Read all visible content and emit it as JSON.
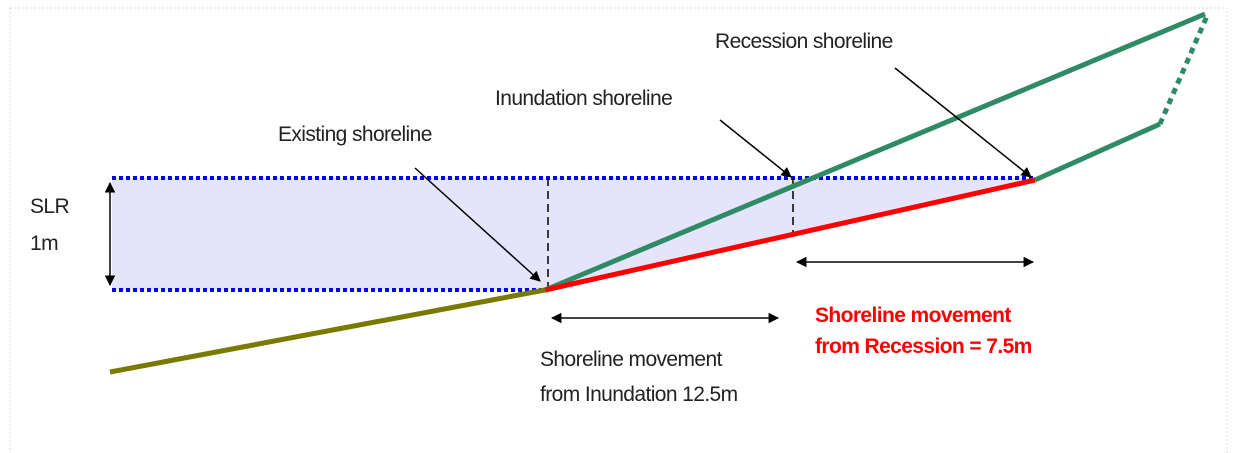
{
  "slr": {
    "label": "SLR",
    "amount": "1m"
  },
  "callouts": {
    "existing": "Existing shoreline",
    "inundation": "Inundation shoreline",
    "recession": "Recession shoreline"
  },
  "movements": {
    "inundation": {
      "line1": "Shoreline movement",
      "line2": "from Inundation 12.5m"
    },
    "recession": {
      "line1": "Shoreline movement",
      "line2": "from Recession = 7.5m"
    }
  }
}
